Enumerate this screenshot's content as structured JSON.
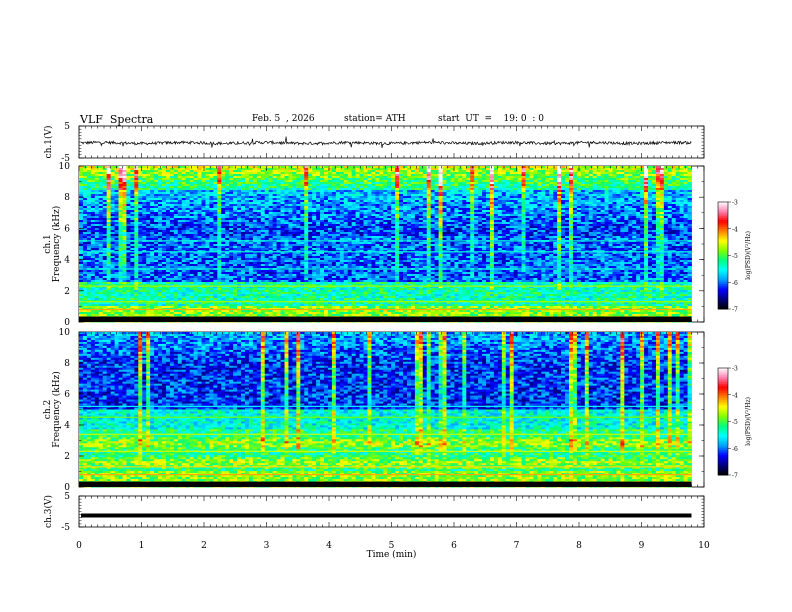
{
  "header": {
    "title": "VLF  Spectra",
    "date": "Feb. 5  , 2026",
    "station": "station= ATH",
    "start": "start  UT  =    19: 0  : 0"
  },
  "chart_data": [
    {
      "type": "line",
      "panel": "ch1-waveform",
      "ylabel": "ch.1(V)",
      "yticks": [
        "5",
        "-5"
      ],
      "ylim": [
        -5,
        5
      ],
      "signal": "noisy trace around -0.3 V"
    },
    {
      "type": "heatmap",
      "panel": "ch1-spectrogram",
      "ylabel": "ch.1\nFrequency  (kHz)",
      "ylabel_line1": "ch.1",
      "ylabel_line2": "Frequency  (kHz)",
      "yticks": [
        "0",
        "2",
        "4",
        "6",
        "8",
        "10"
      ],
      "ylim": [
        0,
        10
      ],
      "colorbar": {
        "label": "log(PSD)(V²/Hz)",
        "ticks": [
          "-3",
          "-4",
          "-5",
          "-6",
          "-7"
        ],
        "range": [
          -7,
          -3
        ]
      }
    },
    {
      "type": "heatmap",
      "panel": "ch2-spectrogram",
      "ylabel": "ch.2\nFrequency  (kHz)",
      "ylabel_line1": "ch.2",
      "ylabel_line2": "Frequency  (kHz)",
      "yticks": [
        "0",
        "2",
        "4",
        "6",
        "8",
        "10"
      ],
      "ylim": [
        0,
        10
      ],
      "colorbar": {
        "label": "log(PSD)(V²/Hz)",
        "ticks": [
          "-3",
          "-4",
          "-5",
          "-6",
          "-7"
        ],
        "range": [
          -7,
          -3
        ]
      }
    },
    {
      "type": "line",
      "panel": "ch3-waveform",
      "ylabel": "ch.3(V)",
      "yticks": [
        "5",
        "-5"
      ],
      "ylim": [
        -5,
        5
      ],
      "signal": "flat thick trace near -1 V"
    }
  ],
  "xaxis": {
    "label": "Time  (min)",
    "ticks": [
      "0",
      "1",
      "2",
      "3",
      "4",
      "5",
      "6",
      "7",
      "8",
      "9",
      "10"
    ],
    "xlim": [
      0,
      10
    ],
    "data_end": 9.8
  },
  "colors": {
    "background": "#ffffff",
    "trace": "#000000",
    "colormap": [
      "#000000",
      "#000080",
      "#0000ff",
      "#00a0ff",
      "#00ffff",
      "#00ff80",
      "#80ff00",
      "#ffff00",
      "#ff8000",
      "#ff0000",
      "#ff80b0",
      "#ffffff"
    ]
  }
}
